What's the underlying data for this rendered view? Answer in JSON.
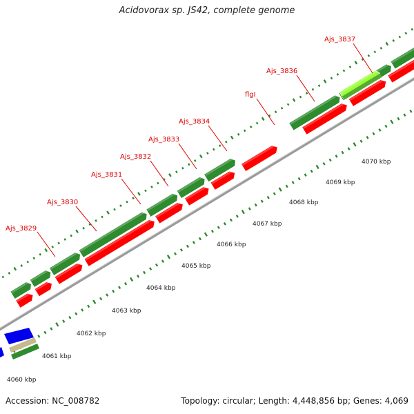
{
  "title": "Acidovorax sp. JS42, complete genome",
  "footer": {
    "accession": "Accession: NC_008782",
    "topology": "Topology: circular; Length: 4,448,856 bp; Genes: 4,069"
  },
  "colors": {
    "forward_cds": "#2e8b2e",
    "forward_cds_light": "#66c066",
    "reverse_cds": "#ff0000",
    "highlight_cds": "#99ff33",
    "blue_feature": "#0000ee",
    "tan_feature": "#c8b98a",
    "backbone": "#9a9a9a",
    "ticks": "#2a8a2a",
    "gene_label": "#dd0000"
  },
  "scale_labels": [
    "4060 kbp",
    "4061 kbp",
    "4062 kbp",
    "4063 kbp",
    "4064 kbp",
    "4065 kbp",
    "4066 kbp",
    "4067 kbp",
    "4068 kbp",
    "4069 kbp",
    "4070 kbp"
  ],
  "gene_labels": [
    "Ajs_3829",
    "Ajs_3830",
    "Ajs_3831",
    "Ajs_3832",
    "Ajs_3833",
    "Ajs_3834",
    "flgI",
    "Ajs_3836",
    "Ajs_3837"
  ]
}
